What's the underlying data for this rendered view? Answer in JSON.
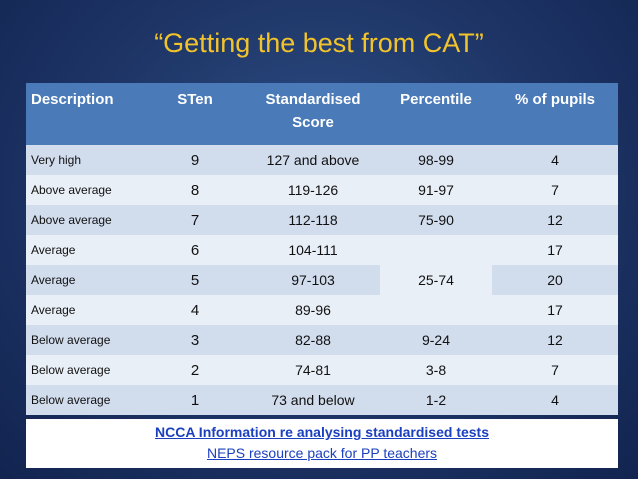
{
  "title": "“Getting the best from CAT”",
  "table": {
    "headers": {
      "description": "Description",
      "sten": "STen",
      "standardised_line1": "Standardised",
      "standardised_line2": "Score",
      "percentile": "Percentile",
      "pct_pupils": "% of pupils"
    },
    "rows": [
      {
        "description": "Very high",
        "sten": "9",
        "score": "127  and above",
        "percentile": "98-99",
        "pupils": "4"
      },
      {
        "description": "Above average",
        "sten": "8",
        "score": "119-126",
        "percentile": "91-97",
        "pupils": "7"
      },
      {
        "description": "Above average",
        "sten": "7",
        "score": "112-118",
        "percentile": "75-90",
        "pupils": "12"
      },
      {
        "description": "Average",
        "sten": "6",
        "score": "104-111",
        "percentile": "",
        "pupils": "17"
      },
      {
        "description": "Average",
        "sten": "5",
        "score": "97-103",
        "percentile": "",
        "pupils": "20"
      },
      {
        "description": "Average",
        "sten": "4",
        "score": "89-96",
        "percentile": "",
        "pupils": "17"
      },
      {
        "description": "Below average",
        "sten": "3",
        "score": "82-88",
        "percentile": "9-24",
        "pupils": "12"
      },
      {
        "description": "Below average",
        "sten": "2",
        "score": "74-81",
        "percentile": "3-8",
        "pupils": "7"
      },
      {
        "description": "Below average",
        "sten": "1",
        "score": "73 and below",
        "percentile": "1-2",
        "pupils": "4"
      }
    ],
    "merged_percentile": "25-74"
  },
  "links": {
    "ncca": "NCCA Information re analysing standardised tests",
    "neps": "NEPS resource pack for PP teachers"
  },
  "colors": {
    "background": "#1d3465",
    "title": "#f3c42a",
    "header": "#4a7ab8",
    "row_dark": "#d1dced",
    "row_light": "#e9eff7",
    "link": "#1a3fbf"
  }
}
